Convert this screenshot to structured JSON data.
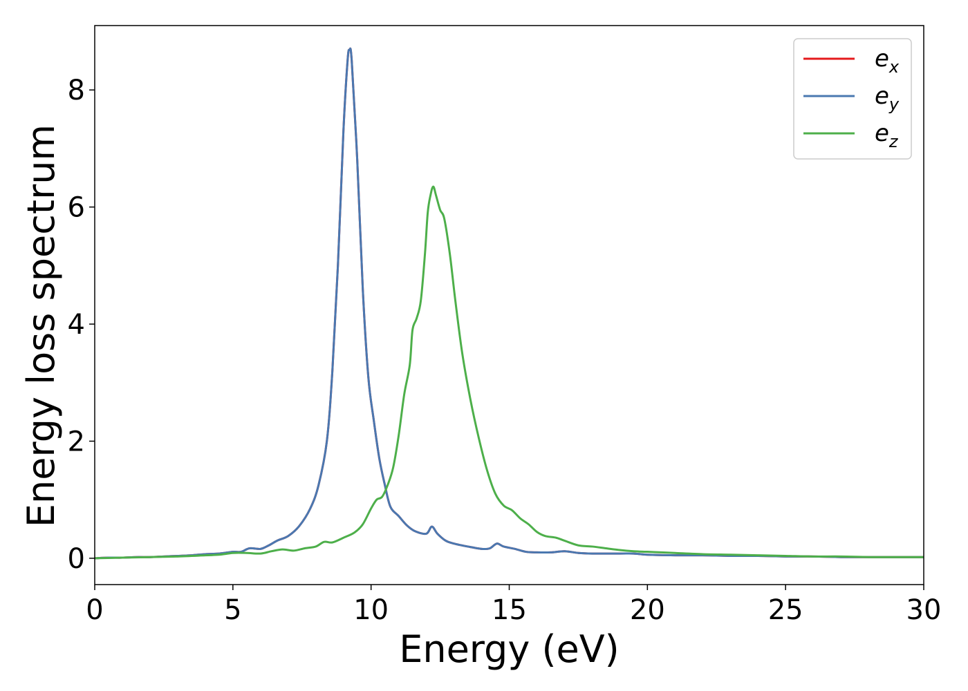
{
  "chart_data": {
    "type": "line",
    "xlabel": "Energy (eV)",
    "ylabel": "Energy loss spectrum",
    "xlim": [
      0,
      30
    ],
    "ylim": [
      -0.45,
      9.1
    ],
    "xticks": [
      0,
      5,
      10,
      15,
      20,
      25,
      30
    ],
    "xtick_labels": [
      "0",
      "5",
      "10",
      "15",
      "20",
      "25",
      "30"
    ],
    "yticks": [
      0,
      2,
      4,
      6,
      8
    ],
    "ytick_labels": [
      "0",
      "2",
      "4",
      "6",
      "8"
    ],
    "grid": false,
    "legend_position": "top-right",
    "series": [
      {
        "name": "e_x",
        "base": "e",
        "sub": "x",
        "color": "#e41a1c",
        "points": [
          [
            0,
            0
          ],
          [
            0.5,
            0.01
          ],
          [
            1,
            0.01
          ],
          [
            1.5,
            0.02
          ],
          [
            2,
            0.02
          ],
          [
            2.5,
            0.03
          ],
          [
            3,
            0.04
          ],
          [
            3.5,
            0.05
          ],
          [
            4,
            0.07
          ],
          [
            4.5,
            0.08
          ],
          [
            5,
            0.11
          ],
          [
            5.3,
            0.11
          ],
          [
            5.6,
            0.17
          ],
          [
            6,
            0.16
          ],
          [
            6.3,
            0.22
          ],
          [
            6.6,
            0.3
          ],
          [
            7,
            0.38
          ],
          [
            7.4,
            0.55
          ],
          [
            7.8,
            0.85
          ],
          [
            8.1,
            1.25
          ],
          [
            8.4,
            2.0
          ],
          [
            8.6,
            3.2
          ],
          [
            8.8,
            5.0
          ],
          [
            9.0,
            7.3
          ],
          [
            9.15,
            8.5
          ],
          [
            9.22,
            8.68
          ],
          [
            9.3,
            8.5
          ],
          [
            9.5,
            6.8
          ],
          [
            9.7,
            4.6
          ],
          [
            9.9,
            3.1
          ],
          [
            10.1,
            2.35
          ],
          [
            10.3,
            1.7
          ],
          [
            10.5,
            1.25
          ],
          [
            10.7,
            0.88
          ],
          [
            11,
            0.72
          ],
          [
            11.3,
            0.56
          ],
          [
            11.6,
            0.46
          ],
          [
            12.0,
            0.42
          ],
          [
            12.2,
            0.54
          ],
          [
            12.4,
            0.42
          ],
          [
            12.7,
            0.3
          ],
          [
            13,
            0.25
          ],
          [
            13.5,
            0.2
          ],
          [
            14,
            0.16
          ],
          [
            14.3,
            0.17
          ],
          [
            14.55,
            0.25
          ],
          [
            14.8,
            0.2
          ],
          [
            15.2,
            0.16
          ],
          [
            15.6,
            0.11
          ],
          [
            16,
            0.1
          ],
          [
            16.5,
            0.1
          ],
          [
            17,
            0.12
          ],
          [
            17.5,
            0.09
          ],
          [
            18,
            0.08
          ],
          [
            19,
            0.08
          ],
          [
            19.5,
            0.08
          ],
          [
            20,
            0.06
          ],
          [
            21,
            0.05
          ],
          [
            22,
            0.05
          ],
          [
            23,
            0.04
          ],
          [
            24,
            0.04
          ],
          [
            25,
            0.03
          ],
          [
            26,
            0.03
          ],
          [
            27,
            0.02
          ],
          [
            28,
            0.02
          ],
          [
            29,
            0.02
          ],
          [
            30,
            0.02
          ]
        ]
      },
      {
        "name": "e_y",
        "base": "e",
        "sub": "y",
        "color": "#4a78b0",
        "points": [
          [
            0,
            0
          ],
          [
            0.5,
            0.01
          ],
          [
            1,
            0.01
          ],
          [
            1.5,
            0.02
          ],
          [
            2,
            0.02
          ],
          [
            2.5,
            0.03
          ],
          [
            3,
            0.04
          ],
          [
            3.5,
            0.05
          ],
          [
            4,
            0.07
          ],
          [
            4.5,
            0.08
          ],
          [
            5,
            0.11
          ],
          [
            5.3,
            0.11
          ],
          [
            5.6,
            0.17
          ],
          [
            6,
            0.16
          ],
          [
            6.3,
            0.22
          ],
          [
            6.6,
            0.3
          ],
          [
            7,
            0.38
          ],
          [
            7.4,
            0.55
          ],
          [
            7.8,
            0.85
          ],
          [
            8.1,
            1.25
          ],
          [
            8.4,
            2.0
          ],
          [
            8.6,
            3.2
          ],
          [
            8.8,
            5.0
          ],
          [
            9.0,
            7.3
          ],
          [
            9.15,
            8.5
          ],
          [
            9.22,
            8.68
          ],
          [
            9.3,
            8.5
          ],
          [
            9.5,
            6.8
          ],
          [
            9.7,
            4.6
          ],
          [
            9.9,
            3.1
          ],
          [
            10.1,
            2.35
          ],
          [
            10.3,
            1.7
          ],
          [
            10.5,
            1.25
          ],
          [
            10.7,
            0.88
          ],
          [
            11,
            0.72
          ],
          [
            11.3,
            0.56
          ],
          [
            11.6,
            0.46
          ],
          [
            12.0,
            0.42
          ],
          [
            12.2,
            0.54
          ],
          [
            12.4,
            0.42
          ],
          [
            12.7,
            0.3
          ],
          [
            13,
            0.25
          ],
          [
            13.5,
            0.2
          ],
          [
            14,
            0.16
          ],
          [
            14.3,
            0.17
          ],
          [
            14.55,
            0.25
          ],
          [
            14.8,
            0.2
          ],
          [
            15.2,
            0.16
          ],
          [
            15.6,
            0.11
          ],
          [
            16,
            0.1
          ],
          [
            16.5,
            0.1
          ],
          [
            17,
            0.12
          ],
          [
            17.5,
            0.09
          ],
          [
            18,
            0.08
          ],
          [
            19,
            0.08
          ],
          [
            19.5,
            0.08
          ],
          [
            20,
            0.06
          ],
          [
            21,
            0.05
          ],
          [
            22,
            0.05
          ],
          [
            23,
            0.04
          ],
          [
            24,
            0.04
          ],
          [
            25,
            0.03
          ],
          [
            26,
            0.03
          ],
          [
            27,
            0.02
          ],
          [
            28,
            0.02
          ],
          [
            29,
            0.02
          ],
          [
            30,
            0.02
          ]
        ]
      },
      {
        "name": "e_z",
        "base": "e",
        "sub": "z",
        "color": "#4daf4a",
        "points": [
          [
            0,
            0
          ],
          [
            1,
            0.01
          ],
          [
            2,
            0.02
          ],
          [
            3,
            0.03
          ],
          [
            4,
            0.05
          ],
          [
            4.5,
            0.06
          ],
          [
            5,
            0.09
          ],
          [
            5.5,
            0.09
          ],
          [
            6,
            0.08
          ],
          [
            6.4,
            0.12
          ],
          [
            6.8,
            0.15
          ],
          [
            7.2,
            0.13
          ],
          [
            7.6,
            0.17
          ],
          [
            8,
            0.2
          ],
          [
            8.3,
            0.28
          ],
          [
            8.6,
            0.27
          ],
          [
            9,
            0.35
          ],
          [
            9.4,
            0.44
          ],
          [
            9.7,
            0.58
          ],
          [
            10.0,
            0.85
          ],
          [
            10.2,
            1.0
          ],
          [
            10.4,
            1.05
          ],
          [
            10.6,
            1.25
          ],
          [
            10.8,
            1.55
          ],
          [
            11.0,
            2.1
          ],
          [
            11.2,
            2.8
          ],
          [
            11.4,
            3.3
          ],
          [
            11.5,
            3.9
          ],
          [
            11.65,
            4.1
          ],
          [
            11.8,
            4.4
          ],
          [
            11.95,
            5.2
          ],
          [
            12.05,
            5.9
          ],
          [
            12.15,
            6.2
          ],
          [
            12.25,
            6.35
          ],
          [
            12.35,
            6.2
          ],
          [
            12.5,
            5.95
          ],
          [
            12.65,
            5.8
          ],
          [
            12.85,
            5.2
          ],
          [
            13.05,
            4.4
          ],
          [
            13.3,
            3.5
          ],
          [
            13.6,
            2.7
          ],
          [
            13.9,
            2.05
          ],
          [
            14.2,
            1.5
          ],
          [
            14.5,
            1.1
          ],
          [
            14.8,
            0.9
          ],
          [
            15.1,
            0.82
          ],
          [
            15.4,
            0.68
          ],
          [
            15.7,
            0.58
          ],
          [
            16.0,
            0.45
          ],
          [
            16.3,
            0.38
          ],
          [
            16.7,
            0.35
          ],
          [
            17.0,
            0.3
          ],
          [
            17.5,
            0.22
          ],
          [
            18,
            0.2
          ],
          [
            18.5,
            0.17
          ],
          [
            19,
            0.14
          ],
          [
            19.5,
            0.12
          ],
          [
            20,
            0.11
          ],
          [
            20.5,
            0.1
          ],
          [
            21,
            0.09
          ],
          [
            22,
            0.07
          ],
          [
            23,
            0.06
          ],
          [
            24,
            0.05
          ],
          [
            25,
            0.04
          ],
          [
            26,
            0.03
          ],
          [
            27,
            0.03
          ],
          [
            28,
            0.02
          ],
          [
            29,
            0.02
          ],
          [
            30,
            0.02
          ]
        ]
      }
    ]
  }
}
